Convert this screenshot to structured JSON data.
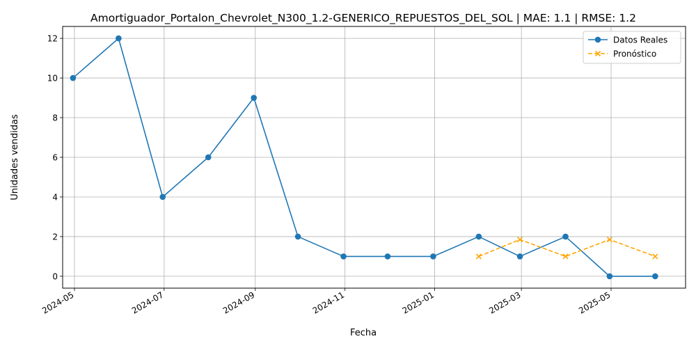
{
  "chart_data": {
    "type": "line",
    "title": "Amortiguador_Portalon_Chevrolet_N300_1.2-GENERICO_REPUESTOS_DEL_SOL | MAE: 1.1 | RMSE: 1.2",
    "xlabel": "Fecha",
    "ylabel": "Unidades vendidas",
    "x_ticks": [
      "2024-05",
      "2024-07",
      "2024-09",
      "2024-11",
      "2025-01",
      "2025-03",
      "2025-05"
    ],
    "y_ticks": [
      0,
      2,
      4,
      6,
      8,
      10,
      12
    ],
    "ylim": [
      -0.6,
      12.6
    ],
    "grid": true,
    "legend_position": "upper right",
    "series": [
      {
        "name": "Datos Reales",
        "color": "#1f77b4",
        "line_style": "solid",
        "marker": "circle",
        "x": [
          "2024-04-30",
          "2024-05-31",
          "2024-06-30",
          "2024-07-31",
          "2024-08-31",
          "2024-09-30",
          "2024-10-31",
          "2024-11-30",
          "2024-12-31",
          "2025-01-31",
          "2025-02-28",
          "2025-03-31",
          "2025-04-30",
          "2025-05-31"
        ],
        "values": [
          10,
          12,
          4,
          6,
          9,
          2,
          1,
          1,
          1,
          2,
          1,
          2,
          0,
          0
        ]
      },
      {
        "name": "Pronóstico",
        "color": "#ffa500",
        "line_style": "dashed",
        "marker": "x",
        "x": [
          "2025-01-31",
          "2025-02-28",
          "2025-03-31",
          "2025-04-30",
          "2025-05-31"
        ],
        "values": [
          1,
          1.85,
          1,
          1.85,
          1
        ]
      }
    ]
  }
}
